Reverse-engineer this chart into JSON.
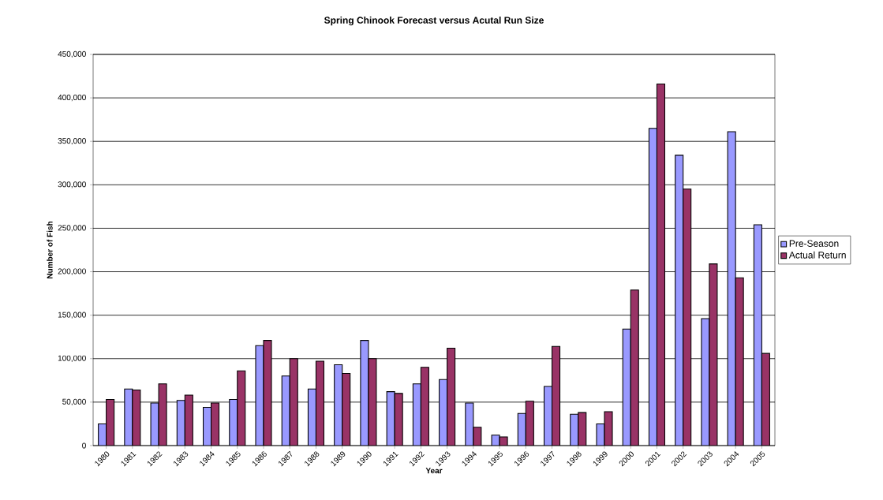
{
  "chart_data": {
    "type": "bar",
    "title": "Spring Chinook Forecast versus Acutal Run Size",
    "xlabel": "Year",
    "ylabel": "Number of Fish",
    "categories": [
      "1980",
      "1981",
      "1982",
      "1983",
      "1984",
      "1985",
      "1986",
      "1987",
      "1988",
      "1989",
      "1990",
      "1991",
      "1992",
      "1993",
      "1994",
      "1995",
      "1996",
      "1997",
      "1998",
      "1999",
      "2000",
      "2001",
      "2002",
      "2003",
      "2004",
      "2005"
    ],
    "series": [
      {
        "name": "Pre-Season",
        "color": "#9999ff",
        "values": [
          25000,
          65000,
          49000,
          52000,
          44000,
          53000,
          115000,
          80000,
          65000,
          93000,
          121000,
          62000,
          71000,
          76000,
          49000,
          12000,
          37000,
          68000,
          36000,
          25000,
          134000,
          365000,
          334000,
          146000,
          361000,
          254000
        ]
      },
      {
        "name": "Actual Return",
        "color": "#993366",
        "values": [
          53000,
          64000,
          71000,
          58000,
          49000,
          86000,
          121000,
          100000,
          97000,
          83000,
          100000,
          60000,
          90000,
          112000,
          21000,
          10000,
          51000,
          114000,
          38000,
          39000,
          179000,
          416000,
          295000,
          209000,
          193000,
          106000
        ]
      }
    ],
    "ylim": [
      0,
      450000
    ],
    "yticks": [
      {
        "value": 0,
        "label": "0"
      },
      {
        "value": 50000,
        "label": "50,000"
      },
      {
        "value": 100000,
        "label": "100,000"
      },
      {
        "value": 150000,
        "label": "150,000"
      },
      {
        "value": 200000,
        "label": "200,000"
      },
      {
        "value": 250000,
        "label": "250,000"
      },
      {
        "value": 300000,
        "label": "300,000"
      },
      {
        "value": 350000,
        "label": "350,000"
      },
      {
        "value": 400000,
        "label": "400,000"
      },
      {
        "value": 450000,
        "label": "450,000"
      }
    ],
    "grid": "y",
    "legend": "right"
  }
}
